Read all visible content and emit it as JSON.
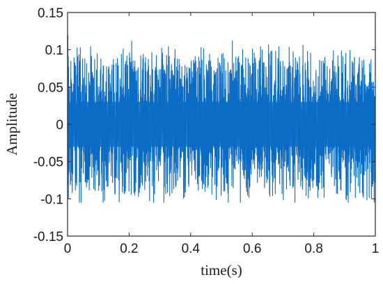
{
  "chart_data": {
    "type": "line",
    "title": "",
    "xlabel": "time(s)",
    "ylabel": "Amplitude",
    "xlim": [
      0,
      1
    ],
    "ylim": [
      -0.15,
      0.15
    ],
    "xticks": [
      0,
      0.2,
      0.4,
      0.6,
      0.8,
      1
    ],
    "xtick_labels": [
      "0",
      "0.2",
      "0.4",
      "0.6",
      "0.8",
      "1"
    ],
    "yticks": [
      -0.15,
      -0.1,
      -0.05,
      0,
      0.05,
      0.1,
      0.15
    ],
    "ytick_labels": [
      "-0.15",
      "-0.1",
      "-0.05",
      "0",
      "0.05",
      "0.1",
      "0.15"
    ],
    "grid": false,
    "legend": "none",
    "series": [
      {
        "color": "#0a6cc4",
        "signal": {
          "description_visible": "dense oscillating vibration signal",
          "peak_max": 0.12,
          "peak_min": -0.105,
          "typical_envelope": 0.095,
          "dense_core": 0.055
        }
      }
    ]
  }
}
